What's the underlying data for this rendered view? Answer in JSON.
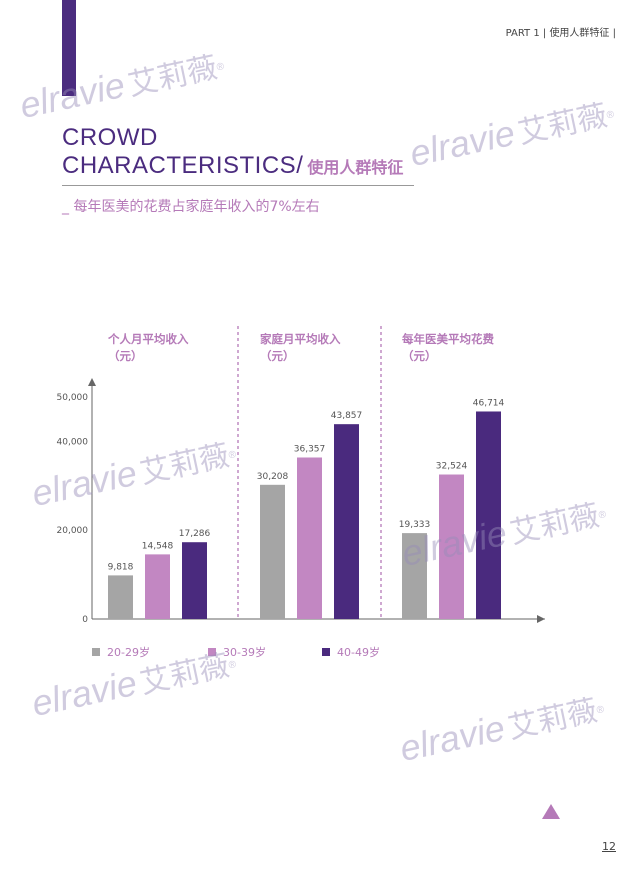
{
  "header": {
    "part_label": "PART 1 | 使用人群特征 |"
  },
  "title": {
    "en_line1": "CROWD",
    "en_line2": "CHARACTERISTICS/",
    "cn": "使用人群特征"
  },
  "subtitle": "_ 每年医美的花费占家庭年收入的7%左右",
  "watermark": {
    "latin": "elravie",
    "cn": "艾莉薇",
    "mark": "®"
  },
  "page_number": "12",
  "colors": {
    "brand": "#4b2c7f",
    "accent": "#b57ab8",
    "gray": "#a5a5a5"
  },
  "chart_data": {
    "type": "bar",
    "groups": [
      {
        "label": "个人月平均收入",
        "unit": "（元）"
      },
      {
        "label": "家庭月平均收入",
        "unit": "（元）"
      },
      {
        "label": "每年医美平均花费",
        "unit": "（元）"
      }
    ],
    "series": [
      {
        "name": "20-29岁",
        "color": "#a5a5a5",
        "values": [
          9818,
          30208,
          19333
        ],
        "labels": [
          "9,818",
          "30,208",
          "19,333"
        ]
      },
      {
        "name": "30-39岁",
        "color": "#c287c2",
        "values": [
          14548,
          36357,
          32524
        ],
        "labels": [
          "14,548",
          "36,357",
          "32,524"
        ]
      },
      {
        "name": "40-49岁",
        "color": "#4a2a7e",
        "values": [
          17286,
          43857,
          46714
        ],
        "labels": [
          "17,286",
          "43,857",
          "46,714"
        ]
      }
    ],
    "yticks": [
      {
        "value": 0,
        "label": "0"
      },
      {
        "value": 20000,
        "label": "20,000"
      },
      {
        "value": 40000,
        "label": "40,000"
      },
      {
        "value": 50000,
        "label": "50,000"
      }
    ],
    "ylim": [
      0,
      52000
    ],
    "legend_position": "bottom"
  }
}
